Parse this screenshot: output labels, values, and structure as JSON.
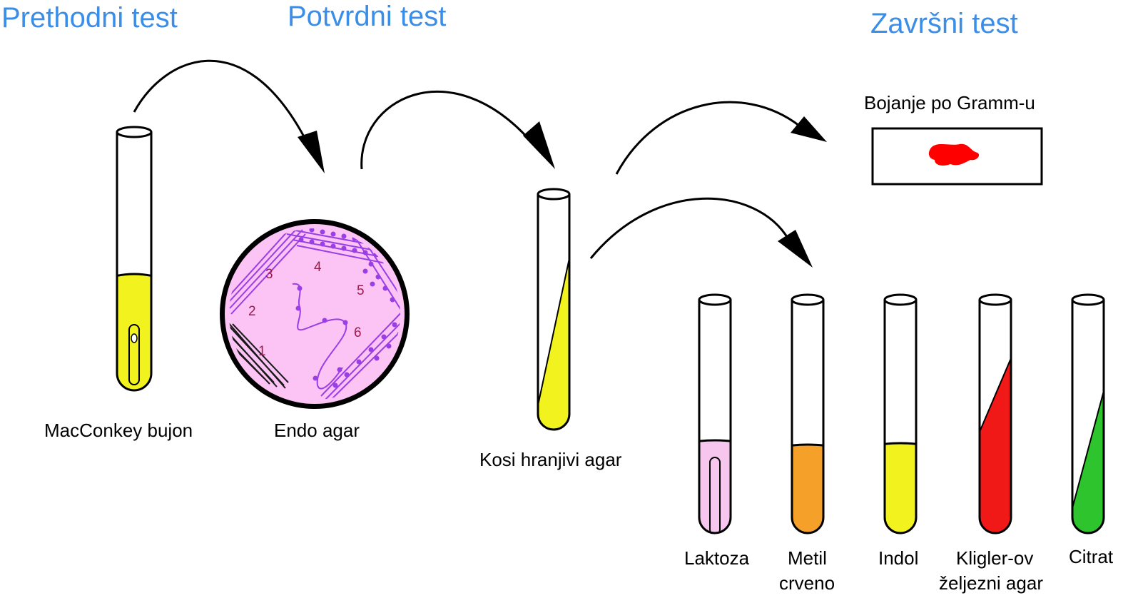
{
  "headers": {
    "preliminary": "Prethodni test",
    "confirmed": "Potvrdni test",
    "completed": "Završni test"
  },
  "labels": {
    "macconkey": "MacConkey bujon",
    "endo": "Endo agar",
    "slant": "Kosi hranjivi agar",
    "gram": "Bojanje po Gramm-u"
  },
  "streak_numbers": [
    "1",
    "2",
    "3",
    "4",
    "5",
    "6"
  ],
  "tests": [
    {
      "line1": "Laktoza",
      "line2": ""
    },
    {
      "line1": "Metil",
      "line2": "crveno"
    },
    {
      "line1": "Indol",
      "line2": ""
    },
    {
      "line1": "Kligler-ov",
      "line2": "željezni agar"
    },
    {
      "line1": "Citrat",
      "line2": ""
    }
  ],
  "colors": {
    "header": "#3b8ee8",
    "yellow_medium": "#f2f21e",
    "plate": "#fcc3f5",
    "streak": "#8a2be2",
    "streak_number": "#9b1b4a",
    "lactose": "#f7c6ee",
    "methyl_red": "#f5a028",
    "indol": "#f2f21e",
    "kligler": "#f11818",
    "citrate": "#2ec42e",
    "gram_stain": "#ff0000"
  }
}
